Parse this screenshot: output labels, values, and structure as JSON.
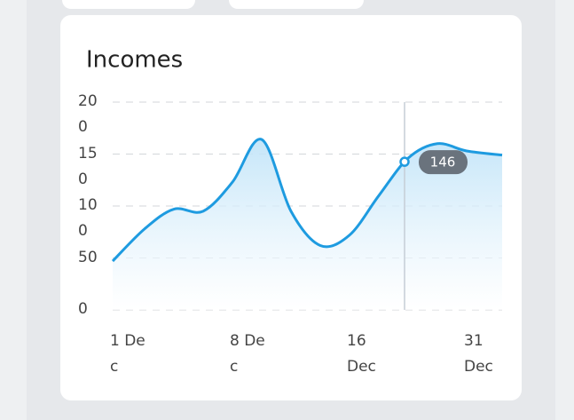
{
  "chart_data": {
    "type": "line",
    "title": "Incomes",
    "categories": [
      "1 Dec",
      null,
      null,
      null,
      "8 Dec",
      null,
      null,
      null,
      "16 Dec",
      null,
      null,
      null,
      "31 Dec",
      null
    ],
    "series": [
      {
        "name": "Incomes",
        "color": "#1e9be0",
        "values": [
          47,
          78,
          97,
          95,
          123,
          164,
          95,
          62,
          72,
          110,
          146,
          160,
          153,
          149
        ]
      }
    ],
    "ylim": [
      0,
      200
    ],
    "yticks": [
      0,
      50,
      100,
      150,
      200
    ],
    "grid": true,
    "highlight_index": 10
  }
}
